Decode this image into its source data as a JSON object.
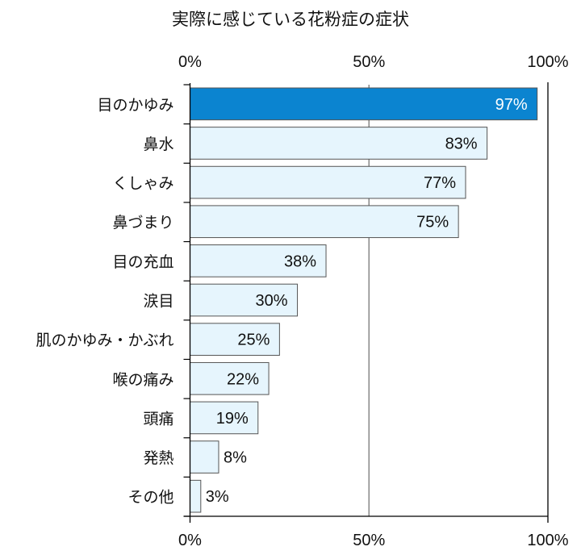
{
  "chart_data": {
    "type": "bar",
    "orientation": "horizontal",
    "title": "実際に感じている花粉症の症状",
    "categories": [
      "目のかゆみ",
      "鼻水",
      "くしゃみ",
      "鼻づまり",
      "目の充血",
      "涙目",
      "肌のかゆみ・かぶれ",
      "喉の痛み",
      "頭痛",
      "発熱",
      "その他"
    ],
    "values": [
      97,
      83,
      77,
      75,
      38,
      30,
      25,
      22,
      19,
      8,
      3
    ],
    "data_labels": [
      "97%",
      "83%",
      "77%",
      "75%",
      "38%",
      "30%",
      "25%",
      "22%",
      "19%",
      "8%",
      "3%"
    ],
    "xlim": [
      0,
      100
    ],
    "xticks": [
      "0%",
      "50%",
      "100%"
    ],
    "xtick_values": [
      0,
      50,
      100
    ],
    "xaxis_position": "top and bottom",
    "grid": "vertical at 50%",
    "colors": {
      "highlight": "#0b84d0",
      "bar": "#e6f5fd",
      "bar_border": "#555555",
      "highlight_label": "#ffffff",
      "label": "#111111"
    }
  }
}
